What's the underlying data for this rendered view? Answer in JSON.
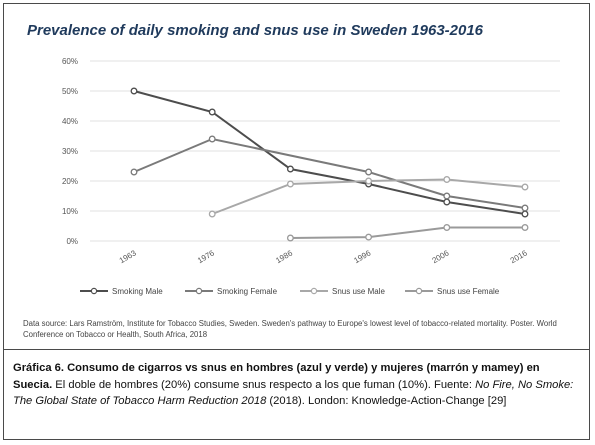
{
  "chart_data": {
    "type": "line",
    "title": "Prevalence of daily smoking and snus use in Sweden 1963-2016",
    "categories": [
      "1963",
      "1976",
      "1986",
      "1996",
      "2006",
      "2016"
    ],
    "ylim": [
      0,
      60
    ],
    "yticks": [
      "0%",
      "10%",
      "20%",
      "30%",
      "40%",
      "50%",
      "60%"
    ],
    "grid": true,
    "legend_position": "bottom",
    "series": [
      {
        "name": "Smoking Male",
        "color": "#4d4d4d",
        "values": [
          50,
          43,
          24,
          19,
          13,
          9
        ]
      },
      {
        "name": "Smoking Female",
        "color": "#7a7a7a",
        "values": [
          23,
          34,
          null,
          23,
          15,
          11
        ]
      },
      {
        "name": "Snus use Male",
        "color": "#a8a8a8",
        "values": [
          null,
          9,
          19,
          20,
          20.5,
          18
        ]
      },
      {
        "name": "Snus use Female",
        "color": "#9a9a9a",
        "values": [
          null,
          null,
          1,
          1.3,
          4.5,
          4.5
        ]
      }
    ]
  },
  "source": "Data source: Lars Ramström, Institute for Tobacco Studies, Sweden. Sweden's pathway to Europe's lowest level of tobacco-related mortality. Poster. World Conference on Tobacco or Health, South Africa, 2018",
  "caption": {
    "bold": "Gráfica 6. Consumo de cigarros vs snus en hombres (azul y verde) y mujeres (marrón y mamey) en Suecia.",
    "text1": " El doble de hombres (20%) consume snus respecto a los que fuman (10%). Fuente: ",
    "italic": "No Fire, No Smoke: The Global State of Tobacco Harm Reduction 2018",
    "text2": " (2018). London: Knowledge-Action-Change [29]"
  }
}
